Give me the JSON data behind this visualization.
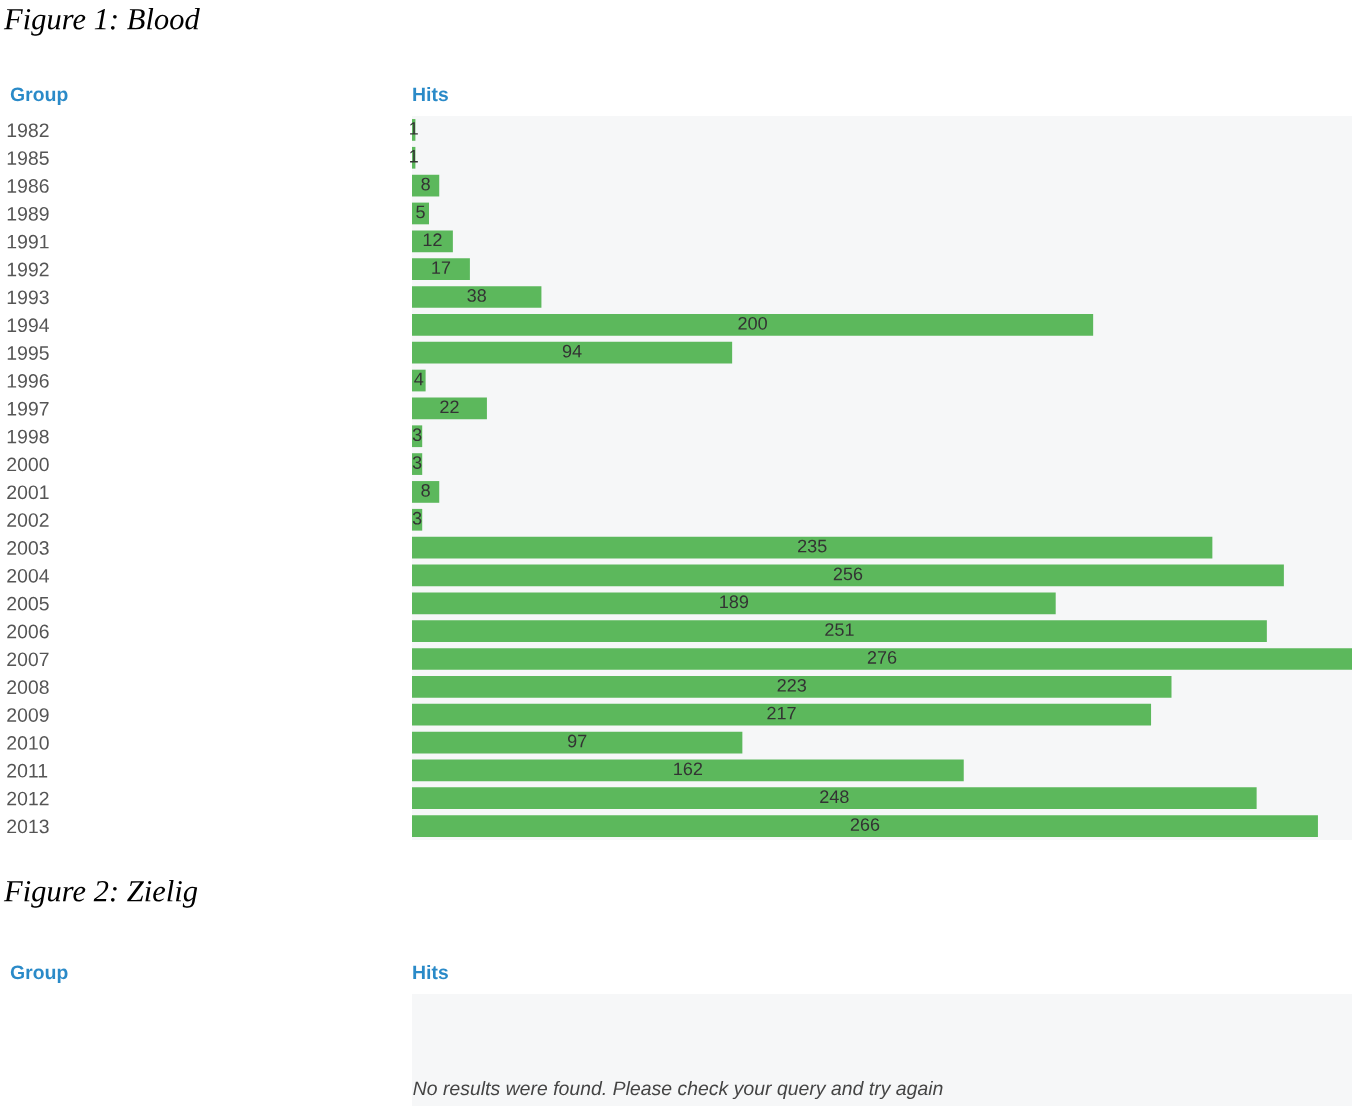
{
  "chart_data": [
    {
      "type": "bar",
      "orientation": "horizontal",
      "title": "Figure 1: Blood",
      "ylabel": "Group",
      "xlabel": "Hits",
      "categories": [
        "1982",
        "1985",
        "1986",
        "1989",
        "1991",
        "1992",
        "1993",
        "1994",
        "1995",
        "1996",
        "1997",
        "1998",
        "2000",
        "2001",
        "2002",
        "2003",
        "2004",
        "2005",
        "2006",
        "2007",
        "2008",
        "2009",
        "2010",
        "2011",
        "2012",
        "2013"
      ],
      "values": [
        1,
        1,
        8,
        5,
        12,
        17,
        38,
        200,
        94,
        4,
        22,
        3,
        3,
        8,
        3,
        235,
        256,
        189,
        251,
        276,
        223,
        217,
        97,
        162,
        248,
        266
      ],
      "color": "#5cb85c",
      "data_labels": true,
      "xlim": [
        0,
        276
      ],
      "tick_labels": "y",
      "grid": false
    },
    {
      "type": "other",
      "title": "Figure 2: Zielig",
      "ylabel": "Group",
      "xlabel": "Hits",
      "annotations": [
        "No results were found. Please check your query and try again"
      ]
    }
  ]
}
